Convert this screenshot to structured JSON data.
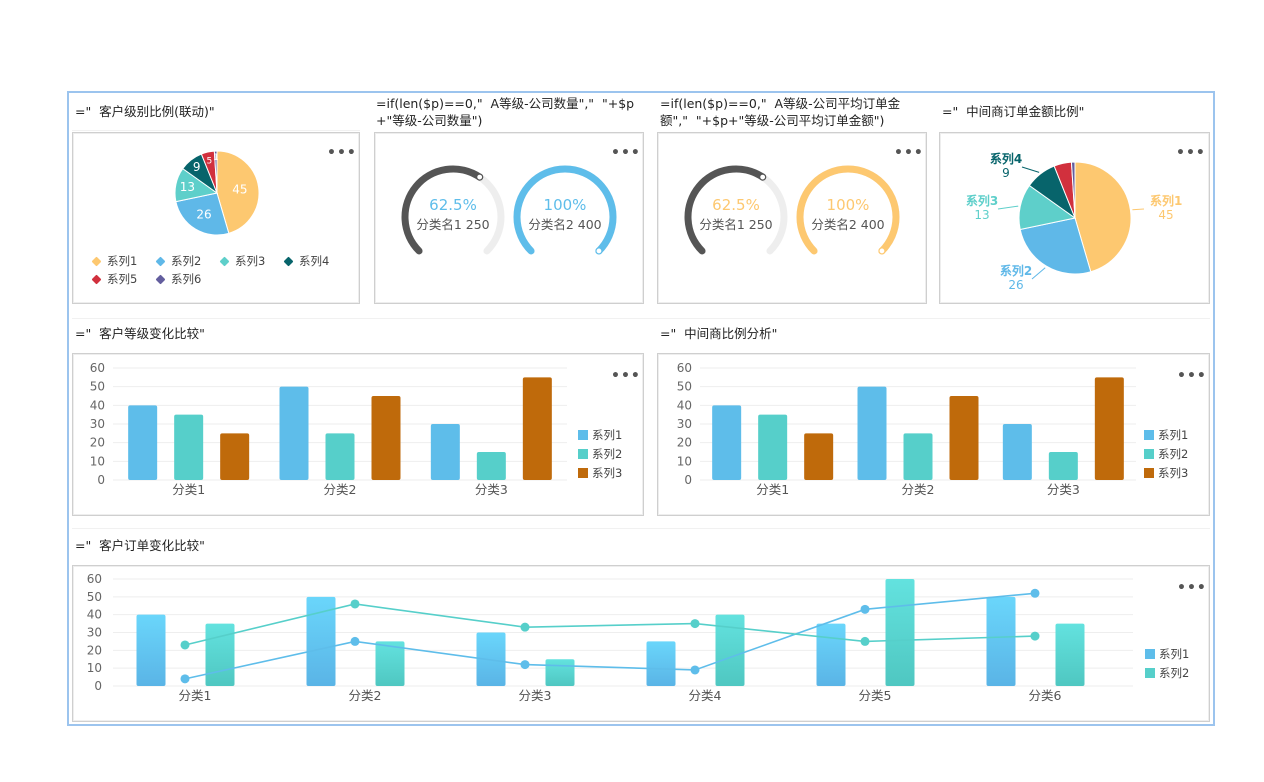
{
  "panels": {
    "p1": {
      "caption": "=\"  客户级别比例(联动)\"",
      "menu": "•••"
    },
    "p2": {
      "caption": "=if(len($p)==0,\"  A等级-公司数量\",\"  \"+$p\n+\"等级-公司数量\")",
      "menu": "•••"
    },
    "p3": {
      "caption": "=if(len($p)==0,\"  A等级-公司平均订单金\n额\",\"  \"+$p+\"等级-公司平均订单金额\")",
      "menu": "•••"
    },
    "p4": {
      "caption": "=\"  中间商订单金额比例\"",
      "menu": "•••"
    },
    "p5": {
      "caption": "=\"  客户等级变化比较\"",
      "menu": "•••"
    },
    "p6": {
      "caption": "=\"  中间商比例分析\"",
      "menu": "•••"
    },
    "p7": {
      "caption": "=\"  客户订单变化比较\"",
      "menu": "•••"
    }
  },
  "colors": {
    "s1": "#fdc870",
    "s2": "#5fb8e8",
    "s3": "#5ecfca",
    "s4": "#07646b",
    "s5": "#d1303d",
    "s6": "#635e9e",
    "bar1": "#5ebdea",
    "bar2": "#56cfca",
    "bar3": "#bf6a0b",
    "gaugeDark": "#555555",
    "gaugeBlue": "#5ebdea",
    "gaugeOrange": "#fdc870",
    "gaugeTrack": "#eeeeee"
  },
  "pie_legend": [
    {
      "label": "系列1",
      "icon": "diamond-icon"
    },
    {
      "label": "系列2",
      "icon": "diamond-icon"
    },
    {
      "label": "系列3",
      "icon": "diamond-icon"
    },
    {
      "label": "系列4",
      "icon": "diamond-icon"
    },
    {
      "label": "系列5",
      "icon": "diamond-icon"
    },
    {
      "label": "系列6",
      "icon": "diamond-icon"
    }
  ],
  "gauges_count": [
    {
      "percent": "62.5%",
      "label": "分类名1 250",
      "fraction": 0.625
    },
    {
      "percent": "100%",
      "label": "分类名2 400",
      "fraction": 1.0
    }
  ],
  "gauges_amount": [
    {
      "percent": "62.5%",
      "label": "分类名1 250",
      "fraction": 0.625
    },
    {
      "percent": "100%",
      "label": "分类名2 400",
      "fraction": 1.0
    }
  ],
  "bar_legend": [
    "系列1",
    "系列2",
    "系列3"
  ],
  "combo_legend": [
    "系列1",
    "系列2"
  ],
  "chart_data": [
    {
      "type": "pie",
      "categories": [
        "系列1",
        "系列2",
        "系列3",
        "系列4",
        "系列5",
        "系列6"
      ],
      "values": [
        45,
        26,
        13,
        9,
        5,
        1
      ],
      "data_labels": [
        "45",
        "26",
        "13",
        "9",
        "5",
        "1"
      ]
    },
    {
      "type": "pie",
      "categories": [
        "系列1",
        "系列2",
        "系列3",
        "系列4",
        "系列5",
        "系列6"
      ],
      "values": [
        45,
        26,
        13,
        9,
        5,
        1
      ],
      "callouts": [
        {
          "name": "系列1",
          "value": "45"
        },
        {
          "name": "系列2",
          "value": "26"
        },
        {
          "name": "系列3",
          "value": "13"
        },
        {
          "name": "系列4",
          "value": "9"
        }
      ]
    },
    {
      "type": "bar",
      "categories": [
        "分类1",
        "分类2",
        "分类3"
      ],
      "series": [
        {
          "name": "系列1",
          "values": [
            40,
            50,
            30
          ]
        },
        {
          "name": "系列2",
          "values": [
            35,
            25,
            15
          ]
        },
        {
          "name": "系列3",
          "values": [
            25,
            45,
            55
          ]
        }
      ],
      "yticks": [
        "0",
        "10",
        "20",
        "30",
        "40",
        "50",
        "60"
      ],
      "ylim": [
        0,
        60
      ]
    },
    {
      "type": "bar",
      "categories": [
        "分类1",
        "分类2",
        "分类3"
      ],
      "series": [
        {
          "name": "系列1",
          "values": [
            40,
            50,
            30
          ]
        },
        {
          "name": "系列2",
          "values": [
            35,
            25,
            15
          ]
        },
        {
          "name": "系列3",
          "values": [
            25,
            45,
            55
          ]
        }
      ],
      "yticks": [
        "0",
        "10",
        "20",
        "30",
        "40",
        "50",
        "60"
      ],
      "ylim": [
        0,
        60
      ]
    },
    {
      "type": "bar",
      "categories": [
        "分类1",
        "分类2",
        "分类3",
        "分类4",
        "分类5",
        "分类6"
      ],
      "series": [
        {
          "name": "系列1",
          "values": [
            40,
            50,
            30,
            25,
            35,
            50
          ]
        },
        {
          "name": "系列2",
          "values": [
            35,
            25,
            15,
            40,
            60,
            35
          ]
        }
      ],
      "lines": [
        {
          "values": [
            4,
            25,
            12,
            9,
            43,
            52
          ]
        },
        {
          "values": [
            23,
            46,
            33,
            35,
            25,
            28
          ]
        }
      ],
      "yticks": [
        "0",
        "10",
        "20",
        "30",
        "40",
        "50",
        "60"
      ],
      "ylim": [
        0,
        60
      ]
    }
  ]
}
